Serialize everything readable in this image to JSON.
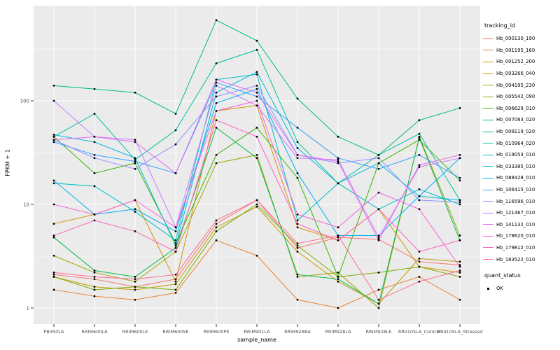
{
  "chart_data": {
    "type": "line",
    "title": "",
    "xlabel": "sample_name",
    "ylabel": "FPKM + 1",
    "y_scale": "log10",
    "y_ticks": [
      1,
      10,
      100
    ],
    "y_tick_labels": [
      "1",
      "10",
      "100"
    ],
    "ylim": [
      1,
      830
    ],
    "grid": true,
    "panel_bg": "#EBEBEB",
    "grid_color": "#FFFFFF",
    "point_color": "#000000",
    "legend_position": "right",
    "legend_title": "tracking_id",
    "legend2_title": "quant_status",
    "legend2_items": [
      {
        "label": "OK"
      }
    ],
    "categories": [
      "PB350LA",
      "RRIM600LA",
      "RRIM600LE",
      "RRIM600SE",
      "RRIM600PE",
      "RRIM901LA",
      "RRIM928BA",
      "RRIM928LA",
      "RRIM928LE",
      "RRII105LA_Control",
      "RRII105LA_Stressed"
    ],
    "series": [
      {
        "name": "Hb_000130_190",
        "color": "#F8766D",
        "values": [
          2.1,
          1.9,
          1.6,
          1.9,
          6.5,
          11,
          3.8,
          4.8,
          4.6,
          2.8,
          2.6
        ]
      },
      {
        "name": "Hb_001195_160",
        "color": "#EA8331",
        "values": [
          1.5,
          1.3,
          1.2,
          1.4,
          4.5,
          3.2,
          1.2,
          1.0,
          1.5,
          2.0,
          1.2
        ]
      },
      {
        "name": "Hb_001252_200",
        "color": "#D89000",
        "values": [
          6.5,
          8,
          11,
          1.8,
          80,
          90,
          6,
          4.5,
          9,
          2.5,
          2.2
        ]
      },
      {
        "name": "Hb_003266_040",
        "color": "#C09B00",
        "values": [
          2.0,
          1.6,
          1.5,
          1.7,
          6,
          9.5,
          3.5,
          1.8,
          1.1,
          3.0,
          2.8
        ]
      },
      {
        "name": "Hb_004195_230",
        "color": "#A3A500",
        "values": [
          3.2,
          2.2,
          1.8,
          3.5,
          25,
          30,
          2.0,
          2.2,
          1.0,
          45,
          5
        ]
      },
      {
        "name": "Hb_005542_090",
        "color": "#7CAE00",
        "values": [
          2.0,
          1.5,
          1.6,
          1.5,
          5.5,
          10,
          4.0,
          2.0,
          2.2,
          2.5,
          2.0
        ]
      },
      {
        "name": "Hb_006629_010",
        "color": "#39B600",
        "values": [
          45,
          20,
          25,
          4.2,
          30,
          55,
          18,
          2.0,
          25,
          42,
          17
        ]
      },
      {
        "name": "Hb_007083_020",
        "color": "#00BB4E",
        "values": [
          4.8,
          2.3,
          2.0,
          3.8,
          55,
          28,
          2.1,
          1.9,
          1.1,
          44,
          4.5
        ]
      },
      {
        "name": "Hb_009119_020",
        "color": "#00BF7D",
        "values": [
          140,
          130,
          120,
          75,
          600,
          380,
          105,
          45,
          30,
          65,
          85
        ]
      },
      {
        "name": "Hb_010964_020",
        "color": "#00C1A3",
        "values": [
          45,
          75,
          27,
          52,
          230,
          310,
          40,
          16,
          30,
          48,
          11
        ]
      },
      {
        "name": "Hb_019053_010",
        "color": "#00BFC4",
        "values": [
          16,
          15,
          8.5,
          4.5,
          160,
          180,
          7,
          16,
          9,
          14,
          10
        ]
      },
      {
        "name": "Hb_033385_010",
        "color": "#00BAE0",
        "values": [
          47,
          40,
          28,
          4.0,
          120,
          190,
          35,
          16,
          25,
          12,
          11
        ]
      },
      {
        "name": "Hb_088428_010",
        "color": "#00B0F6",
        "values": [
          17,
          8,
          9,
          5.5,
          95,
          130,
          20,
          5,
          5,
          12,
          28
        ]
      },
      {
        "name": "Hb_106415_010",
        "color": "#35A2FF",
        "values": [
          40,
          30,
          26,
          20,
          150,
          110,
          55,
          28,
          22,
          30,
          18
        ]
      },
      {
        "name": "Hb_116596_010",
        "color": "#9590FF",
        "values": [
          42,
          28,
          22,
          38,
          110,
          140,
          30,
          25,
          28,
          11,
          10.5
        ]
      },
      {
        "name": "Hb_121467_010",
        "color": "#C77CFF",
        "values": [
          100,
          45,
          42,
          6,
          140,
          90,
          28,
          27,
          4.8,
          23,
          28
        ]
      },
      {
        "name": "Hb_141132_010",
        "color": "#E76BF3",
        "values": [
          42,
          45,
          40,
          20,
          160,
          120,
          30,
          26,
          4.5,
          24,
          30
        ]
      },
      {
        "name": "Hb_178620_010",
        "color": "#FA62DB",
        "values": [
          10,
          8,
          11,
          6,
          80,
          100,
          8,
          6,
          13,
          9,
          2.5
        ]
      },
      {
        "name": "Hb_179812_010",
        "color": "#FF62BC",
        "values": [
          5,
          7,
          5.5,
          3.5,
          65,
          45,
          6.5,
          4.5,
          9,
          3.5,
          4.5
        ]
      },
      {
        "name": "Hb_183522_010",
        "color": "#FF6A98",
        "values": [
          2.2,
          2.0,
          1.9,
          2.1,
          7,
          11,
          4.2,
          5,
          1.2,
          1.8,
          2.3
        ]
      }
    ]
  }
}
